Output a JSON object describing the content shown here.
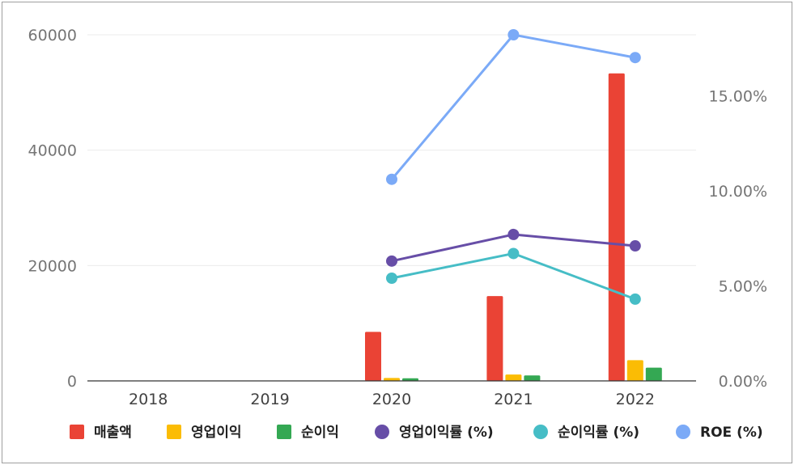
{
  "chart_data": {
    "type": "bar",
    "categories": [
      "2018",
      "2019",
      "2020",
      "2021",
      "2022"
    ],
    "left_axis": {
      "ticks": [
        "0",
        "20000",
        "40000",
        "60000"
      ],
      "ylim": [
        0,
        60000
      ]
    },
    "right_axis": {
      "ticks": [
        "0.00%",
        "5.00%",
        "10.00%",
        "15.00%"
      ],
      "ylim": [
        0,
        18.2
      ]
    },
    "series": [
      {
        "name": "매출액",
        "kind": "bar",
        "axis": "left",
        "color": "#ea4335",
        "values": [
          null,
          null,
          8500,
          14700,
          53300
        ]
      },
      {
        "name": "영업이익",
        "kind": "bar",
        "axis": "left",
        "color": "#fbbc04",
        "values": [
          null,
          null,
          500,
          1100,
          3600
        ]
      },
      {
        "name": "순이익",
        "kind": "bar",
        "axis": "left",
        "color": "#34a853",
        "values": [
          null,
          null,
          450,
          950,
          2300
        ]
      },
      {
        "name": "영업이익률 (%)",
        "kind": "line",
        "axis": "right",
        "color": "#674ea7",
        "values": [
          null,
          null,
          6.3,
          7.7,
          7.1
        ]
      },
      {
        "name": "순이익률 (%)",
        "kind": "line",
        "axis": "right",
        "color": "#46bdc6",
        "values": [
          null,
          null,
          5.4,
          6.7,
          4.3
        ]
      },
      {
        "name": "ROE (%)",
        "kind": "line",
        "axis": "right",
        "color": "#7baaf7",
        "values": [
          null,
          null,
          10.6,
          18.2,
          17.0
        ]
      }
    ],
    "grid": true,
    "legend_position": "bottom"
  }
}
